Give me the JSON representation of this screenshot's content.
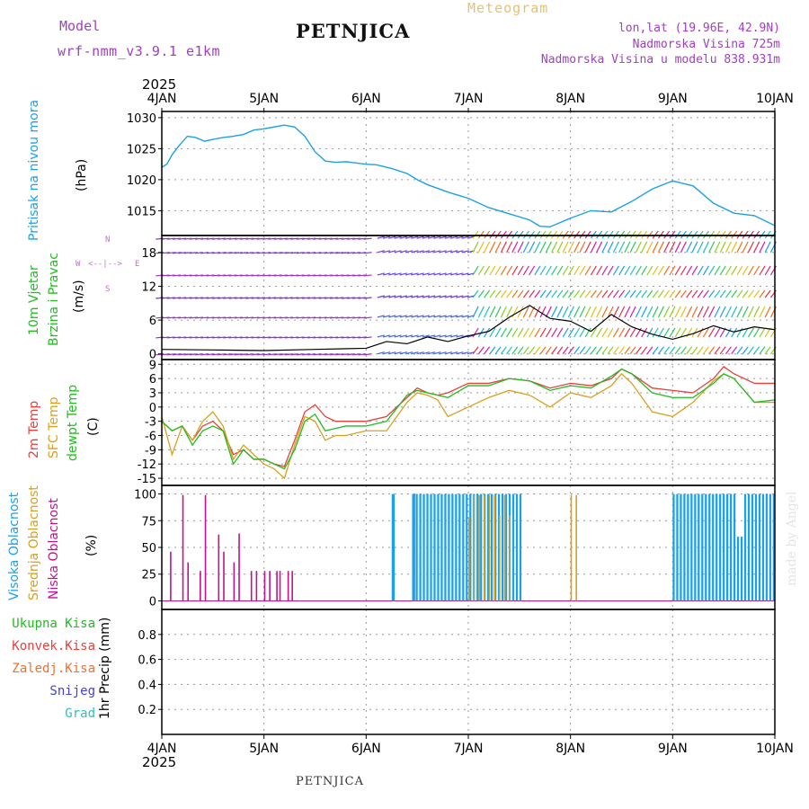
{
  "header": {
    "model_label": "Model",
    "model_name": "wrf-nmm_v3.9.1 e1km",
    "station": "PETNJICA",
    "meteogram": "Meteogram",
    "lonlat": "lon,lat (19.96E, 42.9N)",
    "elevation": "Nadmorska Visina 725m",
    "model_elevation": "Nadmorska Visina u modelu 838.931m",
    "footer_station": "PETNJICA",
    "credit": "made by Angel"
  },
  "colors": {
    "pressure": "#1ea0e6",
    "wind_label": "#22bb22",
    "temp2m": "#e8403a",
    "sfc": "#d9a020",
    "dewpt": "#22bb22",
    "high_cloud": "#1ea0e6",
    "mid_cloud": "#d9a020",
    "low_cloud": "#c0148c",
    "purple": "#a040c0"
  },
  "x_axis": {
    "year": "2025",
    "ticks": [
      "4JAN",
      "5JAN",
      "6JAN",
      "7JAN",
      "8JAN",
      "9JAN",
      "10JAN"
    ]
  },
  "panels": {
    "pressure": {
      "label": "Pritisak na nivou mora",
      "unit": "(hPa)"
    },
    "wind": {
      "label1": "10m Vjetar",
      "label2": "Brzina i Pravac",
      "unit": "(m/s)",
      "compass": "N<--|-->S  W<--|-->E"
    },
    "temp": {
      "label1": "2m Temp",
      "label2": "SFC Temp",
      "label3": "dewpt Temp",
      "unit": "(C)"
    },
    "cloud": {
      "label1": "Visoka Oblacnost",
      "label2": "Srednja Oblacnost",
      "label3": "Niska Oblacnost",
      "unit": "(%)"
    },
    "precip": {
      "legend": [
        "Ukupna Kisa",
        "Konvek.Kisa",
        "Zaledj.Kisa",
        "Snijeg",
        "Grad"
      ],
      "unit": "1hr Precip (mm)"
    }
  },
  "chart_data": [
    {
      "type": "line",
      "title": "",
      "ylabel": "(hPa)",
      "ylim": [
        1011,
        1031
      ],
      "yticks": [
        1015,
        1020,
        1025,
        1030
      ],
      "x_days": [
        0,
        0.05,
        0.1,
        0.17,
        0.25,
        0.33,
        0.42,
        0.5,
        0.6,
        0.7,
        0.8,
        0.9,
        1.0,
        1.1,
        1.2,
        1.3,
        1.4,
        1.5,
        1.6,
        1.7,
        1.8,
        1.9,
        2.0,
        2.1,
        2.25,
        2.4,
        2.5,
        2.6,
        2.7,
        2.8,
        3.0,
        3.2,
        3.4,
        3.6,
        3.7,
        3.8,
        4.0,
        4.2,
        4.4,
        4.6,
        4.8,
        5.0,
        5.2,
        5.4,
        5.6,
        5.8,
        6.0
      ],
      "series": [
        {
          "values": [
            1022,
            1022.5,
            1024,
            1025.5,
            1027,
            1026.8,
            1026.2,
            1026.5,
            1026.8,
            1027,
            1027.3,
            1028,
            1028.2,
            1028.5,
            1028.8,
            1028.5,
            1027,
            1024.5,
            1023,
            1022.8,
            1022.9,
            1022.7,
            1022.5,
            1022.4,
            1021.8,
            1021,
            1020,
            1019.2,
            1018.6,
            1018,
            1017,
            1015.5,
            1014.5,
            1013.5,
            1012.5,
            1012.4,
            1013.8,
            1015,
            1014.8,
            1016.5,
            1018.5,
            1019.8,
            1019,
            1016.2,
            1014.6,
            1014.2,
            1012.6
          ]
        }
      ]
    },
    {
      "type": "line",
      "title": "",
      "ylabel": "(m/s)",
      "ylim": [
        -1,
        21
      ],
      "yticks": [
        0,
        6,
        12,
        18
      ],
      "series": [
        {
          "values_x": [
            0,
            0.5,
            1.0,
            1.5,
            2.0,
            2.2,
            2.4,
            2.6,
            2.8,
            3.0,
            3.2,
            3.4,
            3.6,
            3.8,
            4.0,
            4.2,
            4.4,
            4.6,
            4.8,
            5.0,
            5.2,
            5.4,
            5.6,
            5.8,
            6.0
          ],
          "values": [
            0.8,
            0.7,
            0.6,
            0.8,
            1.0,
            2.2,
            1.8,
            3.0,
            2.2,
            3.2,
            4.0,
            6.5,
            8.6,
            6.3,
            5.8,
            4.0,
            7.0,
            4.8,
            3.5,
            2.6,
            3.6,
            5.0,
            3.9,
            4.8,
            4.3
          ]
        }
      ]
    },
    {
      "type": "line",
      "title": "",
      "ylabel": "(C)",
      "ylim": [
        -16.5,
        10
      ],
      "yticks": [
        -15,
        -12,
        -9,
        -6,
        -3,
        0,
        3,
        6,
        9
      ],
      "x_days": [
        0,
        0.1,
        0.2,
        0.3,
        0.4,
        0.5,
        0.6,
        0.7,
        0.8,
        0.9,
        1.0,
        1.1,
        1.2,
        1.3,
        1.4,
        1.5,
        1.6,
        1.7,
        1.8,
        2.0,
        2.2,
        2.4,
        2.5,
        2.6,
        2.7,
        2.8,
        3.0,
        3.2,
        3.4,
        3.6,
        3.8,
        4.0,
        4.2,
        4.4,
        4.5,
        4.6,
        4.8,
        5.0,
        5.2,
        5.4,
        5.5,
        5.6,
        5.8,
        6.0
      ],
      "series": [
        {
          "name": "2m Temp",
          "values": [
            -3,
            -5,
            -4,
            -7,
            -4,
            -3,
            -5,
            -10,
            -9,
            -11,
            -11,
            -12,
            -12.5,
            -7,
            -1,
            0.5,
            -2,
            -3,
            -3,
            -3,
            -2,
            2,
            4,
            3,
            2.5,
            3,
            5,
            5,
            6,
            5.5,
            4,
            5,
            4.5,
            6,
            8,
            7,
            4,
            3.5,
            3,
            6,
            8.5,
            7,
            5,
            5
          ]
        },
        {
          "name": "SFC Temp",
          "values": [
            -2,
            -10,
            -4,
            -7,
            -3,
            -1,
            -4,
            -11,
            -8,
            -10,
            -12,
            -13,
            -15,
            -8,
            -2,
            -3,
            -7,
            -6,
            -6,
            -5,
            -5,
            1,
            3,
            2.5,
            1.5,
            -2,
            0,
            2,
            3.5,
            2.5,
            0,
            3,
            2,
            4.5,
            7,
            5,
            -1,
            -2,
            1,
            5.5,
            7,
            6,
            1,
            1
          ]
        },
        {
          "name": "dewpt Temp",
          "values": [
            -3,
            -5,
            -4,
            -8,
            -5,
            -4,
            -5,
            -12,
            -9,
            -11,
            -11,
            -12,
            -13,
            -9,
            -3,
            -1.5,
            -5,
            -4.5,
            -4,
            -4,
            -3,
            2.5,
            3.5,
            3,
            2.5,
            2,
            4.5,
            4.5,
            6,
            5.5,
            3.5,
            4.5,
            4,
            6.5,
            8,
            7,
            3,
            2,
            2,
            5,
            7,
            6,
            1,
            1.5
          ]
        }
      ]
    },
    {
      "type": "bar",
      "title": "",
      "ylabel": "(%)",
      "ylim": [
        0,
        100
      ],
      "yticks": [
        0,
        25,
        50,
        75,
        100
      ],
      "series": [
        {
          "name": "Niska Oblacnost",
          "x_days": [
            0.08,
            0.2,
            0.25,
            0.37,
            0.42,
            0.55,
            0.6,
            0.7,
            0.75,
            0.87,
            0.92,
            1.0,
            1.05,
            1.12,
            1.15,
            1.23,
            1.27
          ],
          "values": [
            46,
            99,
            36,
            28,
            99,
            62,
            46,
            36,
            63,
            28,
            28,
            28,
            28,
            28,
            28,
            28,
            28
          ]
        },
        {
          "name": "Srednja Oblacnost",
          "x_days": [
            3.0,
            3.05,
            3.1,
            3.15,
            3.2,
            3.25,
            3.3,
            3.35,
            3.4,
            4.0,
            4.05
          ],
          "values": [
            78,
            99,
            99,
            99,
            99,
            99,
            80,
            99,
            80,
            99,
            99
          ]
        }
      ]
    }
  ]
}
